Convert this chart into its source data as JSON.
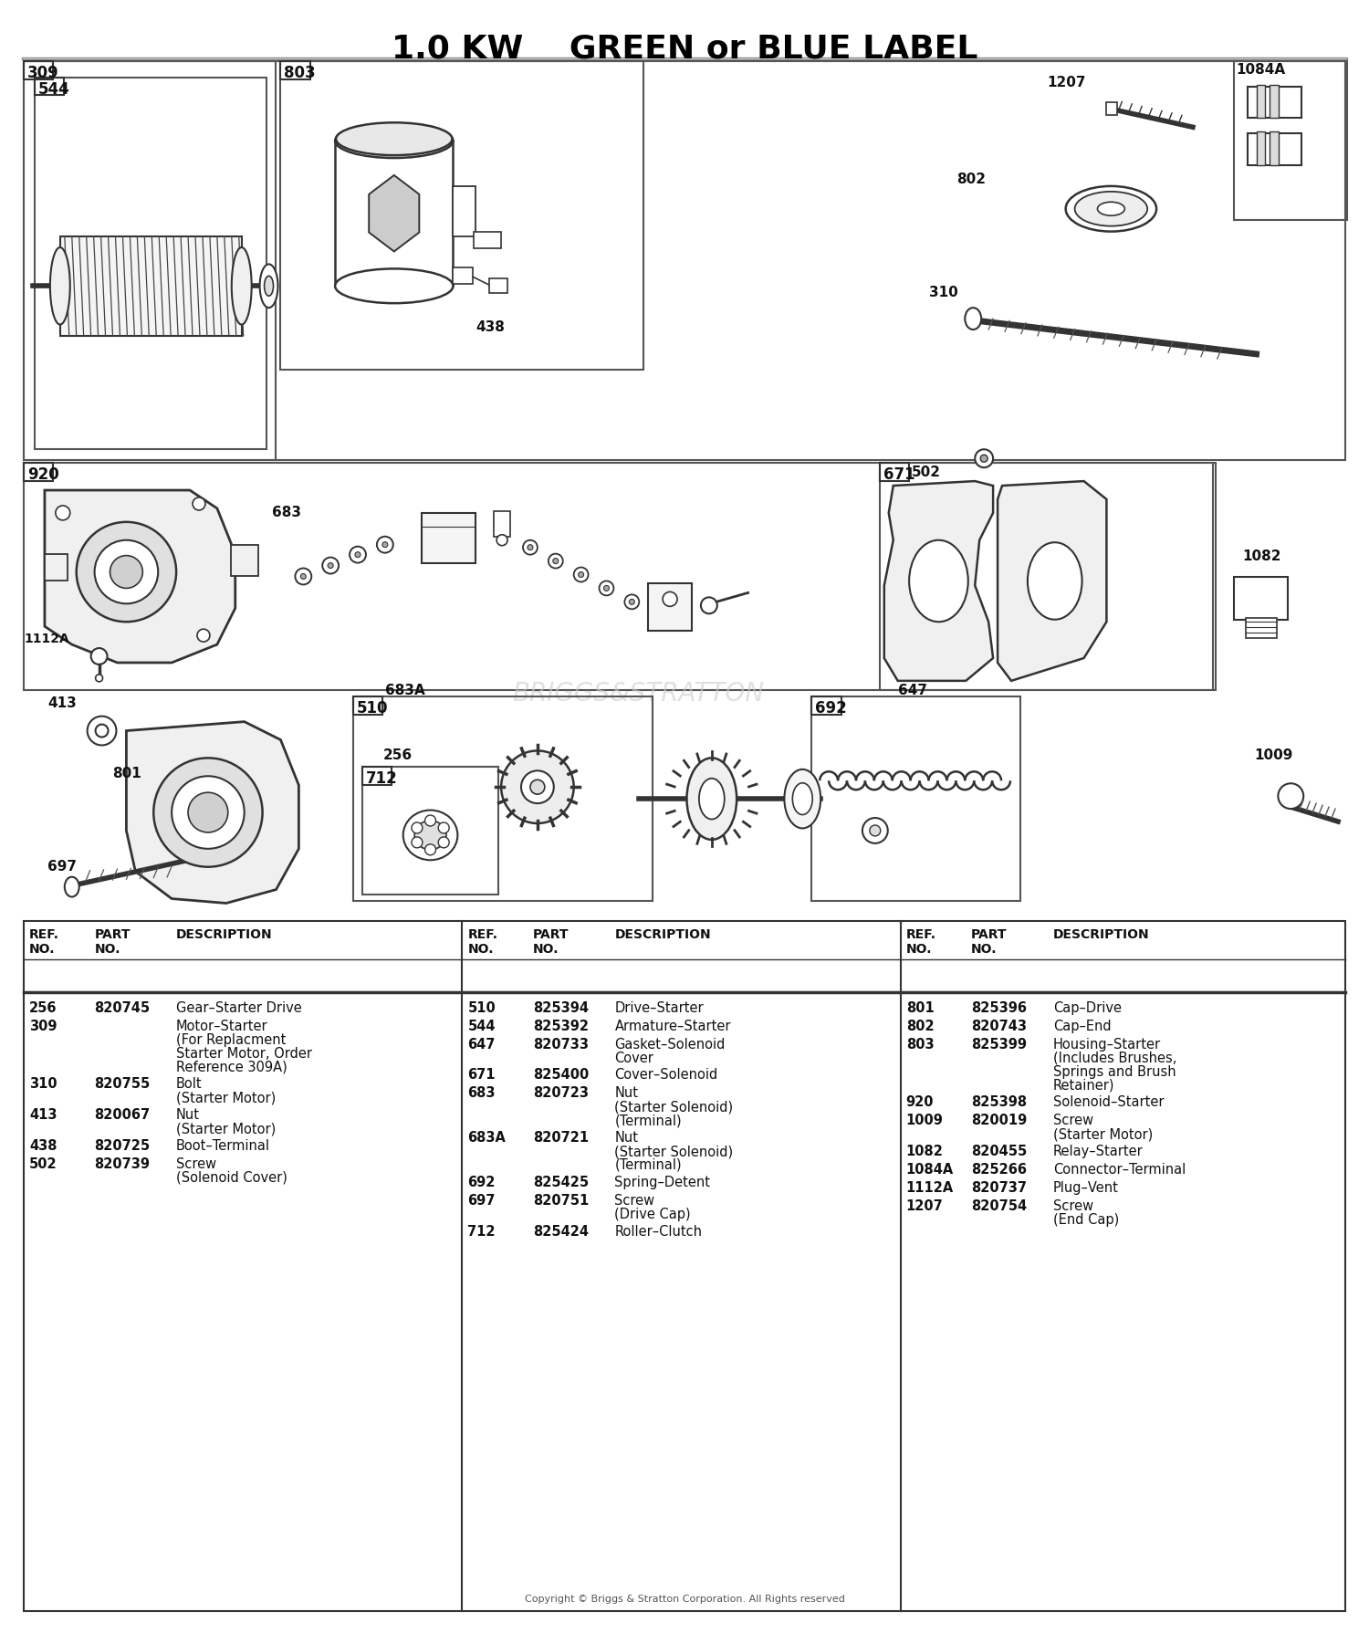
{
  "title": "1.0 KW    GREEN or BLUE LABEL",
  "bg_color": "#ffffff",
  "parts_table": {
    "col1": [
      {
        "ref": "256",
        "part": "820745",
        "desc": "Gear–Starter Drive"
      },
      {
        "ref": "309",
        "part": "",
        "desc": "Motor–Starter\n(For Replacment\nStarter Motor, Order\nReference 309A)"
      },
      {
        "ref": "310",
        "part": "820755",
        "desc": "Bolt\n(Starter Motor)"
      },
      {
        "ref": "413",
        "part": "820067",
        "desc": "Nut\n(Starter Motor)"
      },
      {
        "ref": "438",
        "part": "820725",
        "desc": "Boot–Terminal"
      },
      {
        "ref": "502",
        "part": "820739",
        "desc": "Screw\n(Solenoid Cover)"
      }
    ],
    "col2": [
      {
        "ref": "510",
        "part": "825394",
        "desc": "Drive–Starter"
      },
      {
        "ref": "544",
        "part": "825392",
        "desc": "Armature–Starter"
      },
      {
        "ref": "647",
        "part": "820733",
        "desc": "Gasket–Solenoid\nCover"
      },
      {
        "ref": "671",
        "part": "825400",
        "desc": "Cover–Solenoid"
      },
      {
        "ref": "683",
        "part": "820723",
        "desc": "Nut\n(Starter Solenoid)\n(Terminal)"
      },
      {
        "ref": "683A",
        "part": "820721",
        "desc": "Nut\n(Starter Solenoid)\n(Terminal)"
      },
      {
        "ref": "692",
        "part": "825425",
        "desc": "Spring–Detent"
      },
      {
        "ref": "697",
        "part": "820751",
        "desc": "Screw\n(Drive Cap)"
      },
      {
        "ref": "712",
        "part": "825424",
        "desc": "Roller–Clutch"
      }
    ],
    "col3": [
      {
        "ref": "801",
        "part": "825396",
        "desc": "Cap–Drive"
      },
      {
        "ref": "802",
        "part": "820743",
        "desc": "Cap–End"
      },
      {
        "ref": "803",
        "part": "825399",
        "desc": "Housing–Starter\n(Includes Brushes,\nSprings and Brush\nRetainer)"
      },
      {
        "ref": "920",
        "part": "825398",
        "desc": "Solenoid–Starter"
      },
      {
        "ref": "1009",
        "part": "820019",
        "desc": "Screw\n(Starter Motor)"
      },
      {
        "ref": "1082",
        "part": "820455",
        "desc": "Relay–Starter"
      },
      {
        "ref": "1084A",
        "part": "825266",
        "desc": "Connector–Terminal"
      },
      {
        "ref": "1112A",
        "part": "820737",
        "desc": "Plug–Vent"
      },
      {
        "ref": "1207",
        "part": "820754",
        "desc": "Screw\n(End Cap)"
      }
    ]
  },
  "copyright": "Copyright © Briggs & Stratton Corporation. All Rights reserved",
  "watermark": "BRIGGS&STRATTON"
}
